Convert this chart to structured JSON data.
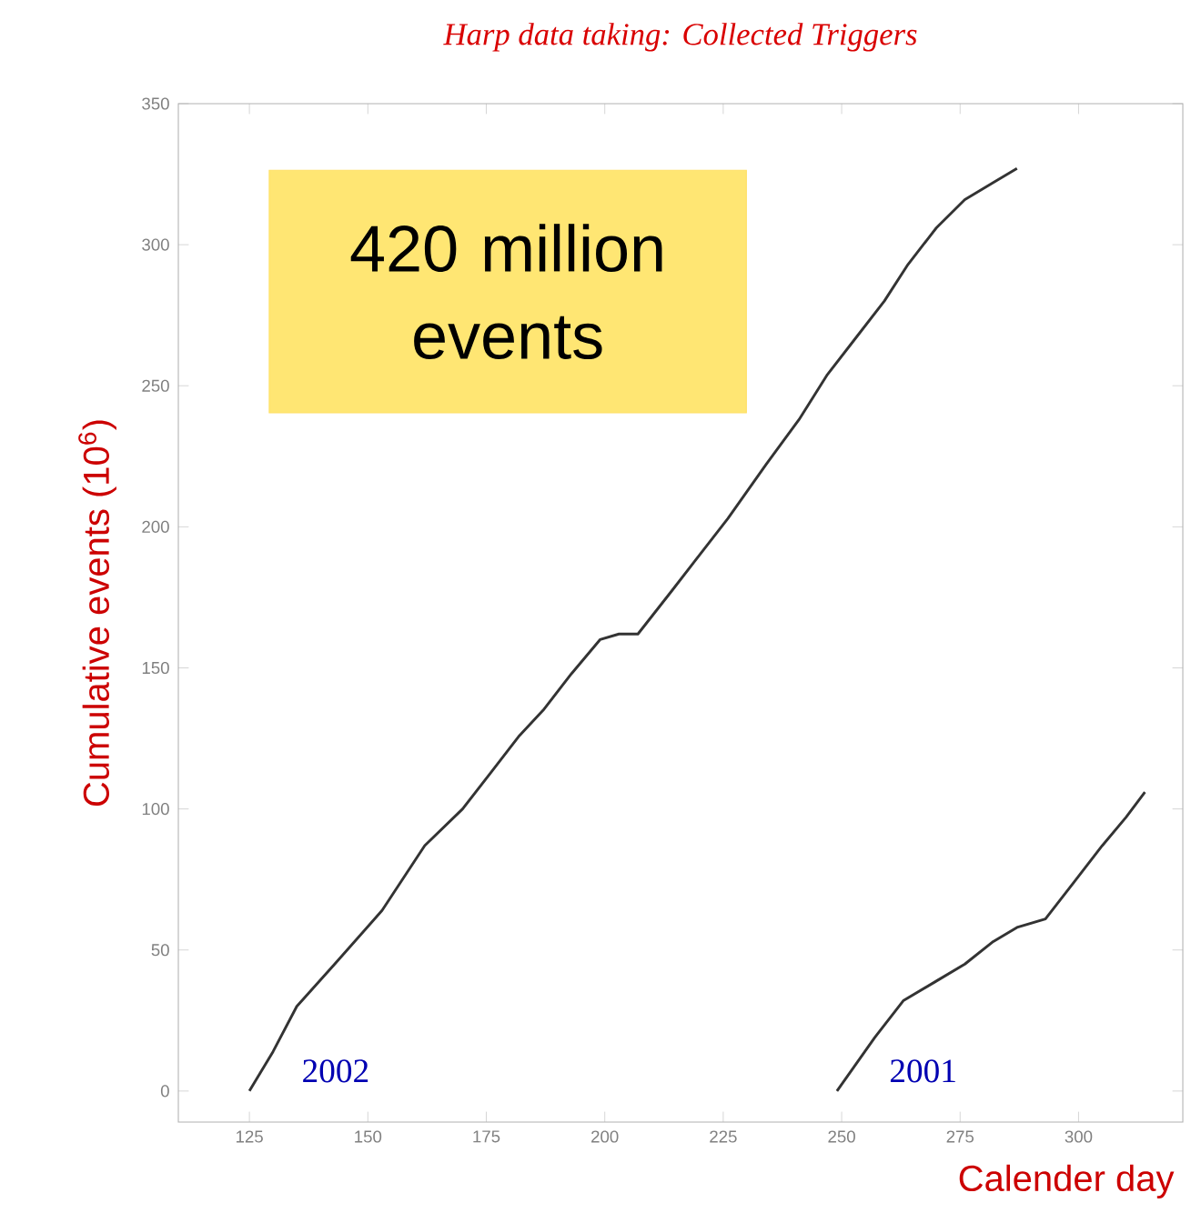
{
  "chart_data": {
    "type": "line",
    "title": "Harp data taking: Collected Triggers",
    "xlabel": "Calender day",
    "ylabel": "Cumulative events (10$^{6}$)",
    "annotations": [
      "420 million events"
    ],
    "series": [
      {
        "name": "2002",
        "color": "#333333",
        "x": [
          125,
          130,
          135,
          143,
          153,
          162,
          170,
          176,
          182,
          187,
          193,
          199,
          203,
          207,
          214,
          220,
          226,
          234,
          241,
          247,
          253,
          259,
          264,
          270,
          276,
          282,
          287
        ],
        "values": [
          0,
          14,
          30,
          45,
          64,
          87,
          100,
          113,
          126,
          135,
          148,
          160,
          162,
          162,
          177,
          190,
          203,
          222,
          238,
          254,
          267,
          280,
          293,
          306,
          316,
          322,
          327
        ]
      },
      {
        "name": "2001",
        "color": "#333333",
        "x": [
          249,
          257,
          263,
          270,
          276,
          282,
          287,
          293,
          299,
          305,
          310,
          314
        ],
        "values": [
          0,
          19,
          32,
          39,
          45,
          53,
          58,
          61,
          74,
          87,
          97,
          106
        ]
      }
    ],
    "xlim": [
      110,
      322
    ],
    "ylim": [
      -11,
      350
    ],
    "xticks": [
      125,
      150,
      175,
      200,
      225,
      250,
      275,
      300
    ],
    "yticks": [
      0,
      50,
      100,
      150,
      200,
      250,
      300,
      350
    ]
  }
}
